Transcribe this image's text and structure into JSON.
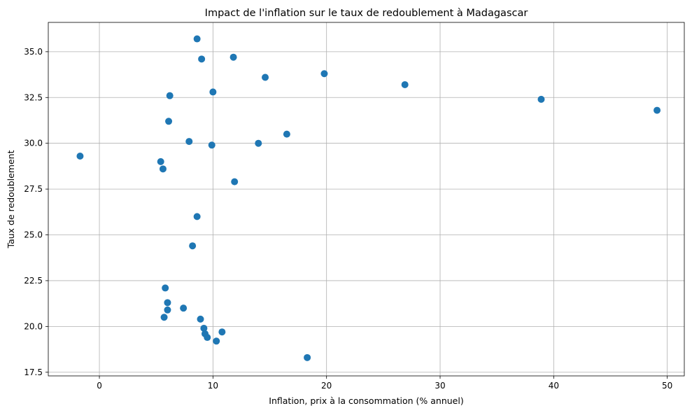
{
  "chart_data": {
    "type": "scatter",
    "title": "Impact de l'inflation sur le taux de redoublement à Madagascar",
    "xlabel": "Inflation, prix à la consommation (% annuel)",
    "ylabel": "Taux de redoublement",
    "xlim": [
      -4.5,
      51.5
    ],
    "ylim": [
      17.3,
      36.6
    ],
    "xticks": [
      0,
      10,
      20,
      30,
      40,
      50
    ],
    "yticks": [
      17.5,
      20.0,
      22.5,
      25.0,
      27.5,
      30.0,
      32.5,
      35.0
    ],
    "xtick_labels": [
      "0",
      "10",
      "20",
      "30",
      "40",
      "50"
    ],
    "ytick_labels": [
      "17.5",
      "20.0",
      "22.5",
      "25.0",
      "27.5",
      "30.0",
      "32.5",
      "35.0"
    ],
    "grid": true,
    "color": "#1f77b4",
    "points": [
      {
        "x": -1.7,
        "y": 29.3
      },
      {
        "x": 5.4,
        "y": 29.0
      },
      {
        "x": 5.6,
        "y": 28.6
      },
      {
        "x": 5.7,
        "y": 20.5
      },
      {
        "x": 5.8,
        "y": 22.1
      },
      {
        "x": 6.0,
        "y": 21.3
      },
      {
        "x": 6.0,
        "y": 20.9
      },
      {
        "x": 6.1,
        "y": 31.2
      },
      {
        "x": 6.2,
        "y": 32.6
      },
      {
        "x": 7.4,
        "y": 21.0
      },
      {
        "x": 7.9,
        "y": 30.1
      },
      {
        "x": 8.2,
        "y": 24.4
      },
      {
        "x": 8.6,
        "y": 35.7
      },
      {
        "x": 8.6,
        "y": 26.0
      },
      {
        "x": 8.9,
        "y": 20.4
      },
      {
        "x": 9.0,
        "y": 34.6
      },
      {
        "x": 9.2,
        "y": 19.9
      },
      {
        "x": 9.3,
        "y": 19.6
      },
      {
        "x": 9.5,
        "y": 19.4
      },
      {
        "x": 9.9,
        "y": 29.9
      },
      {
        "x": 10.0,
        "y": 32.8
      },
      {
        "x": 10.3,
        "y": 19.2
      },
      {
        "x": 10.8,
        "y": 19.7
      },
      {
        "x": 11.8,
        "y": 34.7
      },
      {
        "x": 11.9,
        "y": 27.9
      },
      {
        "x": 14.0,
        "y": 30.0
      },
      {
        "x": 14.6,
        "y": 33.6
      },
      {
        "x": 16.5,
        "y": 30.5
      },
      {
        "x": 18.3,
        "y": 18.3
      },
      {
        "x": 19.8,
        "y": 33.8
      },
      {
        "x": 26.9,
        "y": 33.2
      },
      {
        "x": 38.9,
        "y": 32.4
      },
      {
        "x": 49.1,
        "y": 31.8
      }
    ]
  }
}
